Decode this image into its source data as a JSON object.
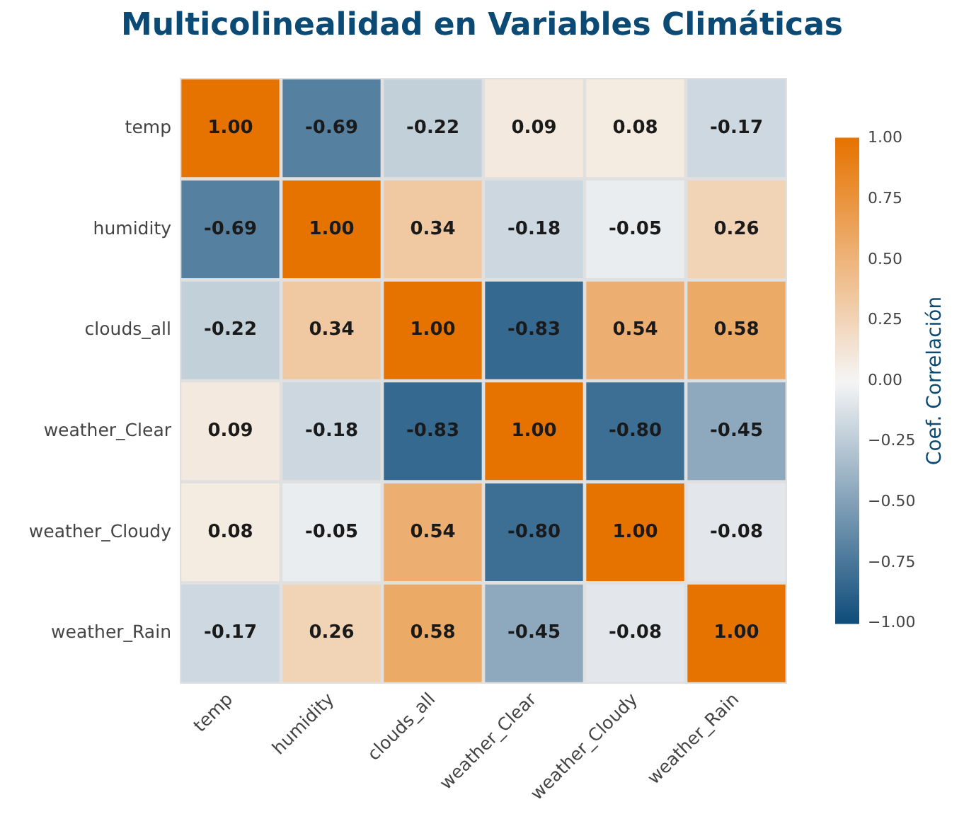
{
  "chart_data": {
    "type": "heatmap",
    "title": "Multicolinealidad en Variables Climáticas",
    "clabel": "Coef. Correlación",
    "categories": [
      "temp",
      "humidity",
      "clouds_all",
      "weather_Clear",
      "weather_Cloudy",
      "weather_Rain"
    ],
    "y_categories": [
      "temp",
      "humidity",
      "clouds_all",
      "weather_Clear",
      "weather_Cloudy",
      "weather_Rain"
    ],
    "cells": [
      [
        1.0,
        -0.69,
        -0.22,
        0.09,
        0.08,
        -0.17
      ],
      [
        -0.69,
        1.0,
        0.34,
        -0.18,
        -0.05,
        0.26
      ],
      [
        -0.22,
        0.34,
        1.0,
        -0.83,
        0.54,
        0.58
      ],
      [
        0.09,
        -0.18,
        -0.83,
        1.0,
        -0.8,
        -0.45
      ],
      [
        0.08,
        -0.05,
        0.54,
        -0.8,
        1.0,
        -0.08
      ],
      [
        -0.17,
        0.26,
        0.58,
        -0.45,
        -0.08,
        1.0
      ]
    ],
    "cell_labels": [
      [
        "1.00",
        "-0.69",
        "-0.22",
        "0.09",
        "0.08",
        "-0.17"
      ],
      [
        "-0.69",
        "1.00",
        "0.34",
        "-0.18",
        "-0.05",
        "0.26"
      ],
      [
        "-0.22",
        "0.34",
        "1.00",
        "-0.83",
        "0.54",
        "0.58"
      ],
      [
        "0.09",
        "-0.18",
        "-0.83",
        "1.00",
        "-0.80",
        "-0.45"
      ],
      [
        "0.08",
        "-0.05",
        "0.54",
        "-0.80",
        "1.00",
        "-0.08"
      ],
      [
        "-0.17",
        "0.26",
        "0.58",
        "-0.45",
        "-0.08",
        "1.00"
      ]
    ],
    "clim": [
      -1,
      1
    ],
    "cticks": [
      {
        "value": -1,
        "label": "−1.00"
      },
      {
        "value": -0.75,
        "label": "−0.75"
      },
      {
        "value": -0.5,
        "label": "−0.50"
      },
      {
        "value": -0.25,
        "label": "−0.25"
      },
      {
        "value": 0,
        "label": "0.00"
      },
      {
        "value": 0.25,
        "label": "0.25"
      },
      {
        "value": 0.5,
        "label": "0.50"
      },
      {
        "value": 0.75,
        "label": "0.75"
      },
      {
        "value": 1,
        "label": "1.00"
      }
    ]
  }
}
